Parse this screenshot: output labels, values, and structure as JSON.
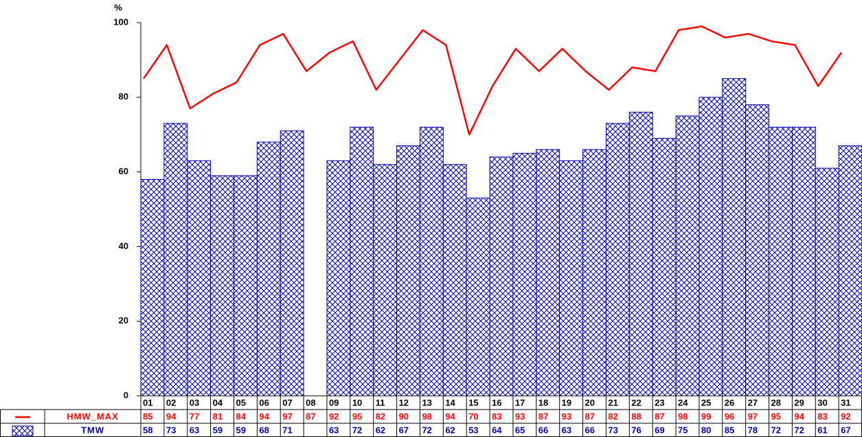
{
  "chart_data": {
    "type": "bar",
    "ylabel": "%",
    "categories": [
      "01",
      "02",
      "03",
      "04",
      "05",
      "06",
      "07",
      "08",
      "09",
      "10",
      "11",
      "12",
      "13",
      "14",
      "15",
      "16",
      "17",
      "18",
      "19",
      "20",
      "21",
      "22",
      "23",
      "24",
      "25",
      "26",
      "27",
      "28",
      "29",
      "30",
      "31"
    ],
    "series": [
      {
        "name": "HMW_MAX",
        "color": "#ff0000",
        "type": "line",
        "values": [
          85,
          94,
          77,
          81,
          84,
          94,
          97,
          87,
          92,
          95,
          82,
          90,
          98,
          94,
          70,
          83,
          93,
          87,
          93,
          87,
          82,
          88,
          87,
          98,
          99,
          96,
          97,
          95,
          94,
          83,
          92
        ]
      },
      {
        "name": "TMW",
        "color": "#0000aa",
        "type": "bar",
        "values": [
          58,
          73,
          63,
          59,
          59,
          68,
          71,
          null,
          63,
          72,
          62,
          67,
          72,
          62,
          53,
          64,
          65,
          66,
          63,
          66,
          73,
          76,
          69,
          75,
          80,
          85,
          78,
          72,
          72,
          61,
          67
        ]
      }
    ],
    "ylim": [
      0,
      100
    ],
    "yticks": [
      0,
      20,
      40,
      60,
      80,
      100
    ]
  }
}
